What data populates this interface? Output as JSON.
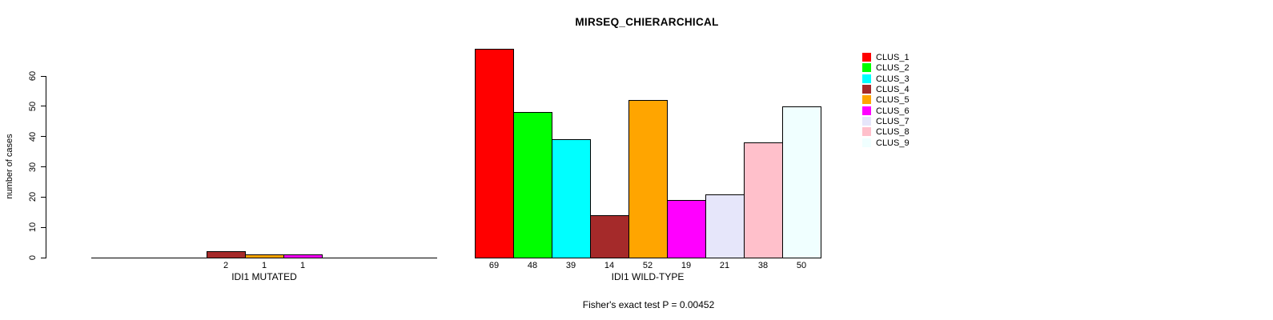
{
  "title": "MIRSEQ_CHIERARCHICAL",
  "footer": "Fisher's exact test P = 0.00452",
  "y_axis": {
    "label": "number of cases",
    "ticks": [
      0,
      10,
      20,
      30,
      40,
      50,
      60
    ]
  },
  "legend": {
    "position": "right",
    "entries": [
      {
        "label": "CLUS_1",
        "color": "#FF0000"
      },
      {
        "label": "CLUS_2",
        "color": "#00FF00"
      },
      {
        "label": "CLUS_3",
        "color": "#00FFFF"
      },
      {
        "label": "CLUS_4",
        "color": "#A52A2A"
      },
      {
        "label": "CLUS_5",
        "color": "#FFA500"
      },
      {
        "label": "CLUS_6",
        "color": "#FF00FF"
      },
      {
        "label": "CLUS_7",
        "color": "#E6E6FA"
      },
      {
        "label": "CLUS_8",
        "color": "#FFC0CB"
      },
      {
        "label": "CLUS_9",
        "color": "#F0FFFF"
      }
    ]
  },
  "chart_data": {
    "type": "bar",
    "title": "MIRSEQ_CHIERARCHICAL",
    "ylabel": "number of cases",
    "xlabel": "",
    "ylim": [
      0,
      60
    ],
    "grid": false,
    "legend_position": "right",
    "categories": [
      "CLUS_1",
      "CLUS_2",
      "CLUS_3",
      "CLUS_4",
      "CLUS_5",
      "CLUS_6",
      "CLUS_7",
      "CLUS_8",
      "CLUS_9"
    ],
    "colors": [
      "#FF0000",
      "#00FF00",
      "#00FFFF",
      "#A52A2A",
      "#FFA500",
      "#FF00FF",
      "#E6E6FA",
      "#FFC0CB",
      "#F0FFFF"
    ],
    "series": [
      {
        "name": "IDI1 MUTATED",
        "values": [
          0,
          0,
          0,
          2,
          1,
          1,
          0,
          0,
          0
        ]
      },
      {
        "name": "IDI1 WILD-TYPE",
        "values": [
          69,
          48,
          39,
          14,
          52,
          19,
          21,
          38,
          50
        ]
      }
    ],
    "bar_value_labels_shown": [
      "2",
      "1",
      "1",
      "69",
      "48",
      "39",
      "14",
      "52",
      "19",
      "21",
      "38",
      "50"
    ],
    "annotation": "Fisher's exact test P = 0.00452"
  }
}
